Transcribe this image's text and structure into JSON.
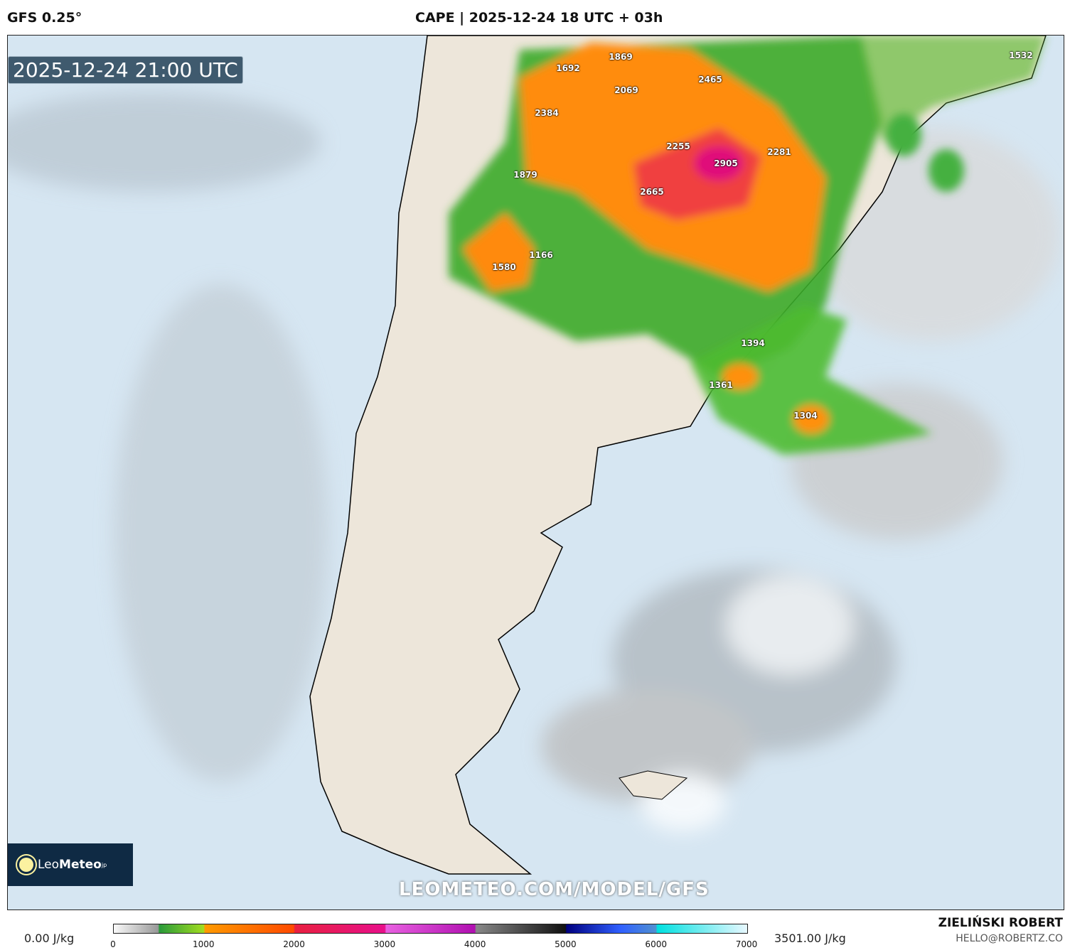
{
  "header": {
    "model": "GFS 0.25°",
    "title": "CAPE | 2025-12-24 18 UTC + 03h"
  },
  "map": {
    "valid_time": "2025-12-24 21:00 UTC",
    "value_labels": [
      "1532",
      "1869",
      "1692",
      "2465",
      "2069",
      "2384",
      "2255",
      "2281",
      "2905",
      "1879",
      "2665",
      "1166",
      "1580",
      "1394",
      "1361",
      "1304"
    ],
    "watermark": "LEOMETEO.COM/MODEL/GFS",
    "logo": {
      "text_light": "Leo",
      "text_bold": "Meteo",
      "suffix": "jp"
    }
  },
  "colorbar": {
    "min_label": "0.00 J/kg",
    "max_label": "3501.00 J/kg",
    "ticks": [
      "0",
      "1000",
      "2000",
      "3000",
      "4000",
      "5000",
      "6000",
      "7000"
    ]
  },
  "credits": {
    "author": "ZIELIŃSKI ROBERT",
    "email": "HELLO@ROBERTZ.CO"
  }
}
